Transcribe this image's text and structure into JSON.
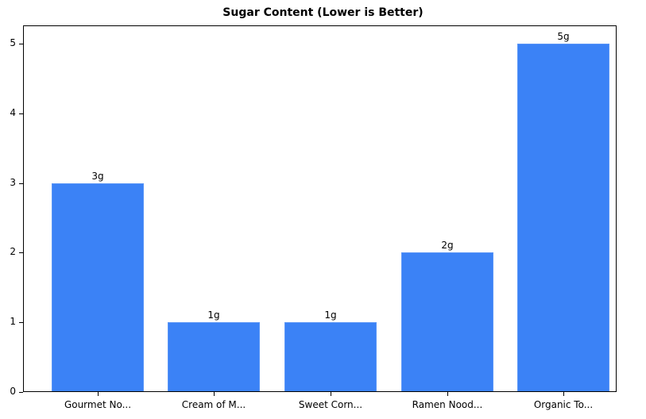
{
  "chart_data": {
    "type": "bar",
    "title": "Sugar Content (Lower is Better)",
    "categories": [
      "Gourmet No...",
      "Cream of M...",
      "Sweet Corn...",
      "Ramen Nood...",
      "Organic To..."
    ],
    "values": [
      3,
      1,
      1,
      2,
      5
    ],
    "value_labels": [
      "3g",
      "1g",
      "1g",
      "2g",
      "5g"
    ],
    "xlabel": "",
    "ylabel": "",
    "ylim": [
      0,
      5.25
    ],
    "yticks": [
      0,
      1,
      2,
      3,
      4,
      5
    ],
    "grid": false,
    "bar_color": "#3b82f6"
  }
}
